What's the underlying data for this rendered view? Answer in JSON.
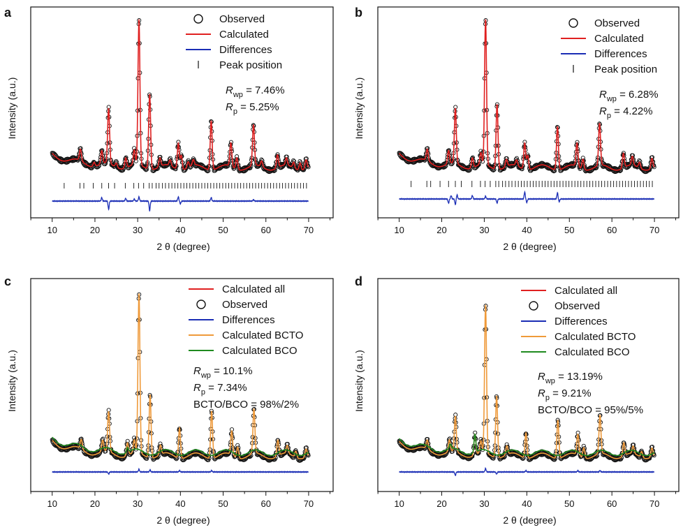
{
  "chart_data": [
    {
      "panel": "a",
      "type": "line",
      "xlabel": "2 θ (degree)",
      "ylabel": "Intensity (a.u.)",
      "xlim": [
        7,
        72
      ],
      "xticks": [
        10,
        20,
        30,
        40,
        50,
        60,
        70
      ],
      "legend": [
        "Observed",
        "Calculated",
        "Differences",
        "Peak position"
      ],
      "stats": [
        {
          "sym": "R",
          "sub": "wp",
          "val": " = 7.46%"
        },
        {
          "sym": "R",
          "sub": "p",
          "val": " = 5.25%"
        }
      ],
      "peaks": [
        [
          16.6,
          8
        ],
        [
          19.8,
          3
        ],
        [
          21.6,
          9
        ],
        [
          23.2,
          38
        ],
        [
          25.0,
          3
        ],
        [
          27.2,
          7
        ],
        [
          29.2,
          10
        ],
        [
          30.3,
          100
        ],
        [
          32.8,
          52
        ],
        [
          35.2,
          6
        ],
        [
          37.6,
          4
        ],
        [
          39.5,
          18
        ],
        [
          40.2,
          10
        ],
        [
          41.8,
          4
        ],
        [
          43.0,
          4
        ],
        [
          47.2,
          34
        ],
        [
          51.8,
          16
        ],
        [
          53.2,
          8
        ],
        [
          57.1,
          28
        ],
        [
          59.0,
          4
        ],
        [
          62.7,
          9
        ],
        [
          64.8,
          5
        ],
        [
          66.5,
          4
        ],
        [
          68.0,
          5
        ],
        [
          69.4,
          6
        ]
      ],
      "peak_positions": [
        12.8,
        16.5,
        17.4,
        19.6,
        21.6,
        23.2,
        24.6,
        27.1,
        29.1,
        30.2,
        31.4,
        32.7,
        33.4,
        34.3,
        35.0,
        35.8,
        36.5,
        37.3,
        38.0,
        38.7,
        39.4,
        40.1,
        40.8,
        41.5,
        42.2,
        42.9,
        43.6,
        44.3,
        45.0,
        45.7,
        46.4,
        47.1,
        47.8,
        48.5,
        49.2,
        49.9,
        50.6,
        51.3,
        52.0,
        52.7,
        53.4,
        54.1,
        54.8,
        55.5,
        56.2,
        56.9,
        57.6,
        58.3,
        59.0,
        59.7,
        60.4,
        61.1,
        61.8,
        62.5,
        63.2,
        63.9,
        64.6,
        65.3,
        66.0,
        66.7,
        67.4,
        68.1,
        68.8,
        69.5
      ],
      "diff_features": [
        [
          21.6,
          5
        ],
        [
          23.2,
          -12
        ],
        [
          27.2,
          4
        ],
        [
          29.2,
          3
        ],
        [
          30.3,
          6
        ],
        [
          32.8,
          -14
        ],
        [
          39.5,
          6
        ],
        [
          40.0,
          -4
        ],
        [
          47.2,
          5
        ],
        [
          57.1,
          2
        ]
      ]
    },
    {
      "panel": "b",
      "type": "line",
      "xlabel": "2 θ (degree)",
      "ylabel": "Intensity (a.u.)",
      "xlim": [
        7,
        72
      ],
      "xticks": [
        10,
        20,
        30,
        40,
        50,
        60,
        70
      ],
      "legend": [
        "Observed",
        "Calculated",
        "Differences",
        "Peak position"
      ],
      "stats": [
        {
          "sym": "R",
          "sub": "wp",
          "val": " = 6.28%"
        },
        {
          "sym": "R",
          "sub": "p",
          "val": " = 4.22%"
        }
      ],
      "peaks": [
        [
          16.6,
          8
        ],
        [
          21.6,
          9
        ],
        [
          23.2,
          38
        ],
        [
          27.2,
          7
        ],
        [
          29.2,
          8
        ],
        [
          30.3,
          100
        ],
        [
          33.0,
          45
        ],
        [
          35.2,
          5
        ],
        [
          37.6,
          4
        ],
        [
          39.5,
          18
        ],
        [
          40.2,
          10
        ],
        [
          47.2,
          30
        ],
        [
          51.8,
          16
        ],
        [
          53.2,
          7
        ],
        [
          57.1,
          29
        ],
        [
          62.7,
          10
        ],
        [
          64.8,
          6
        ],
        [
          66.5,
          4
        ],
        [
          69.4,
          7
        ]
      ],
      "peak_positions": [
        12.8,
        16.5,
        17.4,
        19.6,
        21.6,
        23.2,
        24.6,
        27.1,
        29.1,
        30.2,
        31.4,
        32.7,
        33.4,
        34.3,
        35.0,
        35.8,
        36.5,
        37.3,
        38.0,
        38.7,
        39.4,
        40.1,
        40.8,
        41.5,
        42.2,
        42.9,
        43.6,
        44.3,
        45.0,
        45.7,
        46.4,
        47.1,
        47.8,
        48.5,
        49.2,
        49.9,
        50.6,
        51.3,
        52.0,
        52.7,
        53.4,
        54.1,
        54.8,
        55.5,
        56.2,
        56.9,
        57.6,
        58.3,
        59.0,
        59.7,
        60.4,
        61.1,
        61.8,
        62.5,
        63.2,
        63.9,
        64.6,
        65.3,
        66.0,
        66.7,
        67.4,
        68.1,
        68.8,
        69.5
      ],
      "diff_features": [
        [
          21.6,
          -6
        ],
        [
          22.2,
          5
        ],
        [
          23.2,
          -8
        ],
        [
          23.6,
          6
        ],
        [
          27.2,
          5
        ],
        [
          30.3,
          4
        ],
        [
          33.0,
          -6
        ],
        [
          39.5,
          10
        ],
        [
          40.0,
          -5
        ],
        [
          47.2,
          9
        ],
        [
          47.6,
          -4
        ]
      ]
    },
    {
      "panel": "c",
      "type": "line",
      "xlabel": "2 θ (degree)",
      "ylabel": "Intensity (a.u.)",
      "xlim": [
        7,
        72
      ],
      "xticks": [
        10,
        20,
        30,
        40,
        50,
        60,
        70
      ],
      "legend": [
        "Calculated all",
        "Observed",
        "Differences",
        "Calculated BCTO",
        "Calculated BCO"
      ],
      "stats": [
        {
          "sym": "R",
          "sub": "wp",
          "val": " = 10.1%"
        },
        {
          "sym": "R",
          "sub": "p",
          "val": " = 7.34%"
        },
        {
          "sym": "",
          "sub": "",
          "val": "BCTO/BCO = 98%/2%"
        }
      ],
      "peaks": [
        [
          16.8,
          6
        ],
        [
          21.8,
          7
        ],
        [
          23.2,
          25
        ],
        [
          27.6,
          8
        ],
        [
          29.2,
          8
        ],
        [
          30.3,
          100
        ],
        [
          32.9,
          40
        ],
        [
          35.3,
          6
        ],
        [
          39.8,
          19
        ],
        [
          47.3,
          30
        ],
        [
          52.0,
          15
        ],
        [
          53.4,
          7
        ],
        [
          57.2,
          28
        ],
        [
          62.8,
          10
        ],
        [
          65.0,
          5
        ],
        [
          67.0,
          4
        ],
        [
          69.4,
          5
        ]
      ],
      "diff_features": [
        [
          23.2,
          -3
        ],
        [
          30.3,
          4
        ],
        [
          32.9,
          3
        ],
        [
          39.8,
          2
        ],
        [
          47.3,
          2
        ]
      ]
    },
    {
      "panel": "d",
      "type": "line",
      "xlabel": "2 θ (degree)",
      "ylabel": "Intensity (a.u.)",
      "xlim": [
        7,
        72
      ],
      "xticks": [
        10,
        20,
        30,
        40,
        50,
        60,
        70
      ],
      "legend": [
        "Calculated all",
        "Observed",
        "Differences",
        "Calculated BCTO",
        "Calculated BCO"
      ],
      "stats": [
        {
          "sym": "R",
          "sub": "wp",
          "val": " = 13.19%"
        },
        {
          "sym": "R",
          "sub": "p",
          "val": " = 9.21%"
        },
        {
          "sym": "",
          "sub": "",
          "val": "BCTO/BCO = 95%/5%"
        }
      ],
      "peaks": [
        [
          16.6,
          6
        ],
        [
          21.8,
          8
        ],
        [
          23.2,
          24
        ],
        [
          27.8,
          14
        ],
        [
          29.2,
          8
        ],
        [
          30.3,
          100
        ],
        [
          32.9,
          42
        ],
        [
          35.3,
          6
        ],
        [
          39.8,
          17
        ],
        [
          47.3,
          26
        ],
        [
          52.0,
          14
        ],
        [
          53.4,
          7
        ],
        [
          57.2,
          26
        ],
        [
          62.8,
          9
        ],
        [
          65.0,
          5
        ],
        [
          67.0,
          4
        ],
        [
          69.4,
          6
        ]
      ],
      "diff_features": [
        [
          23.2,
          -5
        ],
        [
          30.3,
          5
        ],
        [
          32.9,
          -3
        ],
        [
          39.8,
          2
        ],
        [
          52.0,
          2
        ],
        [
          57.2,
          2
        ]
      ]
    }
  ]
}
